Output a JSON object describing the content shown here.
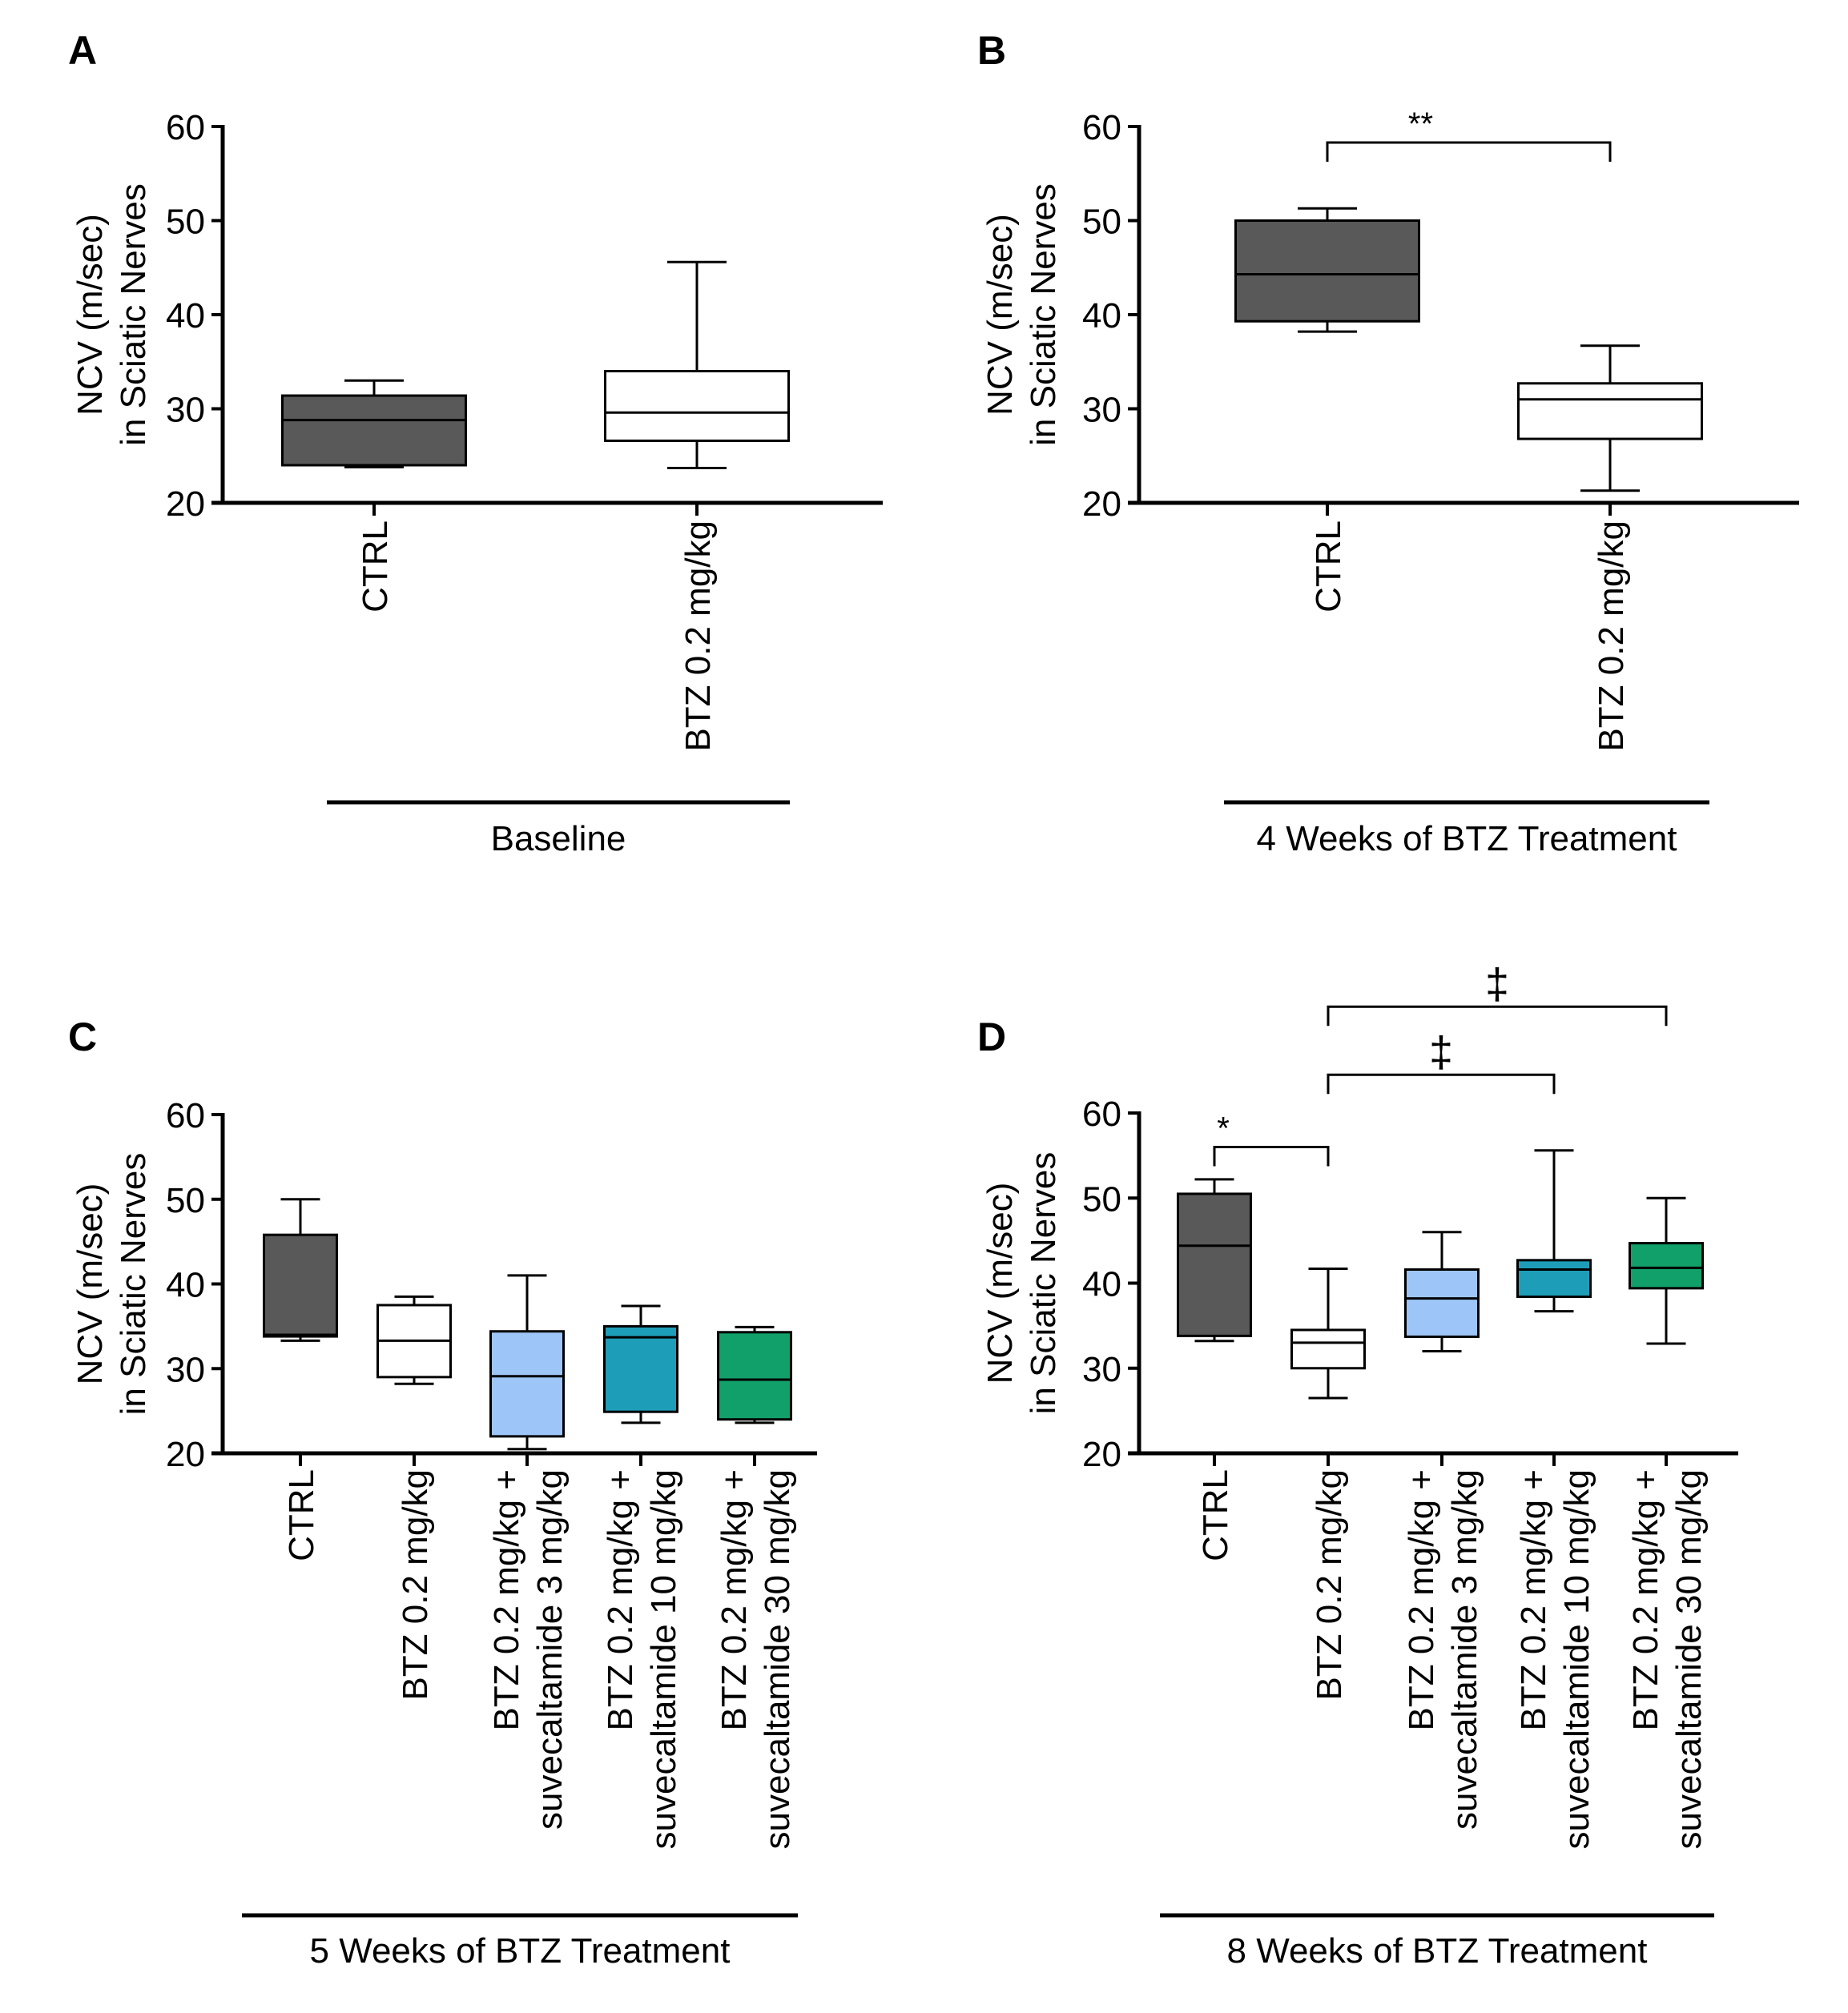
{
  "chart_data": [
    {
      "panel": "A",
      "type": "boxplot",
      "group_label": "Baseline",
      "ylabel_lines": [
        "NCV (m/sec)",
        "in Sciatic Nerves"
      ],
      "ylim": [
        20,
        60
      ],
      "yticks": [
        20,
        30,
        40,
        50,
        60
      ],
      "categories": [
        {
          "label_lines": [
            "CTRL"
          ],
          "min": 23.8,
          "q1": 24.0,
          "median": 28.8,
          "q3": 31.4,
          "max": 33.0,
          "color": "#595959"
        },
        {
          "label_lines": [
            "BTZ 0.2 mg/kg"
          ],
          "min": 23.7,
          "q1": 26.6,
          "median": 29.6,
          "q3": 34.0,
          "max": 45.6,
          "color": "#ffffff"
        }
      ],
      "annotations": []
    },
    {
      "panel": "B",
      "type": "boxplot",
      "group_label": "4 Weeks of BTZ Treatment",
      "ylabel_lines": [
        "NCV (m/sec)",
        "in Sciatic Nerves"
      ],
      "ylim": [
        20,
        60
      ],
      "yticks": [
        20,
        30,
        40,
        50,
        60
      ],
      "categories": [
        {
          "label_lines": [
            "CTRL"
          ],
          "min": 38.2,
          "q1": 39.3,
          "median": 44.3,
          "q3": 50.0,
          "max": 51.3,
          "color": "#595959"
        },
        {
          "label_lines": [
            "BTZ 0.2 mg/kg"
          ],
          "min": 21.3,
          "q1": 26.8,
          "median": 31.0,
          "q3": 32.7,
          "max": 36.7,
          "color": "#ffffff"
        }
      ],
      "annotations": [
        {
          "from": 0,
          "to": 1,
          "label": "**",
          "y": 58.3
        }
      ]
    },
    {
      "panel": "C",
      "type": "boxplot",
      "group_label": "5 Weeks of BTZ Treatment",
      "ylabel_lines": [
        "NCV (m/sec)",
        "in Sciatic Nerves"
      ],
      "ylim": [
        20,
        60
      ],
      "yticks": [
        20,
        30,
        40,
        50,
        60
      ],
      "categories": [
        {
          "label_lines": [
            "CTRL"
          ],
          "min": 33.3,
          "q1": 33.8,
          "median": 34.0,
          "q3": 45.8,
          "max": 50.0,
          "color": "#595959"
        },
        {
          "label_lines": [
            "BTZ 0.2 mg/kg"
          ],
          "min": 28.2,
          "q1": 29.0,
          "median": 33.3,
          "q3": 37.5,
          "max": 38.5,
          "color": "#ffffff"
        },
        {
          "label_lines": [
            "BTZ 0.2 mg/kg +",
            "suvecaltamide 3 mg/kg"
          ],
          "min": 20.5,
          "q1": 22.0,
          "median": 29.1,
          "q3": 34.4,
          "max": 41.0,
          "color": "#9ec5f8"
        },
        {
          "label_lines": [
            "BTZ 0.2 mg/kg +",
            "suvecaltamide 10 mg/kg"
          ],
          "min": 23.6,
          "q1": 24.9,
          "median": 33.7,
          "q3": 35.0,
          "max": 37.4,
          "color": "#1e9db8"
        },
        {
          "label_lines": [
            "BTZ 0.2 mg/kg +",
            "suvecaltamide 30 mg/kg"
          ],
          "min": 23.6,
          "q1": 24.0,
          "median": 28.7,
          "q3": 34.3,
          "max": 34.9,
          "color": "#12a06a"
        }
      ],
      "annotations": []
    },
    {
      "panel": "D",
      "type": "boxplot",
      "group_label": "8 Weeks of BTZ Treatment",
      "ylabel_lines": [
        "NCV (m/sec)",
        "in Sciatic Nerves"
      ],
      "ylim": [
        20,
        60
      ],
      "yticks": [
        20,
        30,
        40,
        50,
        60
      ],
      "categories": [
        {
          "label_lines": [
            "CTRL"
          ],
          "min": 33.2,
          "q1": 33.8,
          "median": 44.4,
          "q3": 50.5,
          "max": 52.2,
          "color": "#595959"
        },
        {
          "label_lines": [
            "BTZ 0.2 mg/kg"
          ],
          "min": 26.5,
          "q1": 30.0,
          "median": 33.0,
          "q3": 34.5,
          "max": 41.7,
          "color": "#ffffff"
        },
        {
          "label_lines": [
            "BTZ 0.2 mg/kg +",
            "suvecaltamide 3 mg/kg"
          ],
          "min": 32.0,
          "q1": 33.7,
          "median": 38.2,
          "q3": 41.6,
          "max": 46.0,
          "color": "#9ec5f8"
        },
        {
          "label_lines": [
            "BTZ 0.2 mg/kg +",
            "suvecaltamide 10 mg/kg"
          ],
          "min": 36.7,
          "q1": 38.4,
          "median": 41.6,
          "q3": 42.7,
          "max": 55.6,
          "color": "#1e9db8"
        },
        {
          "label_lines": [
            "BTZ 0.2 mg/kg +",
            "suvecaltamide 30 mg/kg"
          ],
          "min": 32.9,
          "q1": 39.4,
          "median": 41.8,
          "q3": 44.7,
          "max": 50.0,
          "color": "#12a06a"
        }
      ],
      "annotations": [
        {
          "from": 0,
          "to": 1,
          "label": "*",
          "y": 56.0
        },
        {
          "from": 1,
          "to": 3,
          "label": "‡",
          "y": 64.5
        },
        {
          "from": 1,
          "to": 4,
          "label": "‡",
          "y": 72.5
        }
      ]
    }
  ]
}
